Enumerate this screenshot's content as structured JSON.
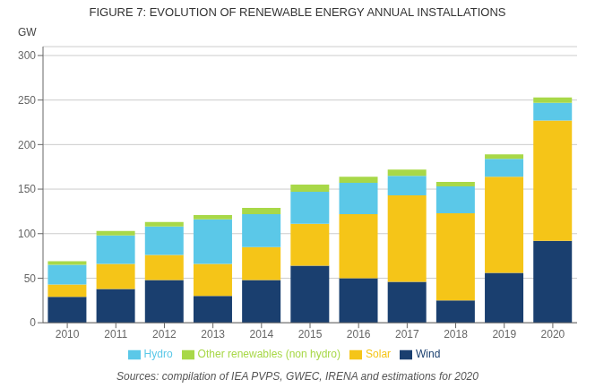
{
  "chart_data": {
    "type": "bar",
    "title": "FIGURE 7: EVOLUTION OF RENEWABLE ENERGY ANNUAL INSTALLATIONS",
    "ylabel": "GW",
    "annotation": "Sources: compilation of IEA PVPS, GWEC, IRENA and estimations for 2020",
    "categories": [
      "2010",
      "2011",
      "2012",
      "2013",
      "2014",
      "2015",
      "2016",
      "2017",
      "2018",
      "2019",
      "2020"
    ],
    "series": [
      {
        "name": "Wind",
        "color": "#1a3f6f",
        "values": [
          29,
          38,
          48,
          30,
          48,
          64,
          50,
          46,
          25,
          56,
          92
        ]
      },
      {
        "name": "Solar",
        "color": "#f5c518",
        "values": [
          14,
          28,
          28,
          36,
          37,
          47,
          72,
          97,
          98,
          108,
          135
        ]
      },
      {
        "name": "Hydro",
        "color": "#5bc8e8",
        "values": [
          22,
          32,
          32,
          50,
          37,
          36,
          35,
          22,
          30,
          20,
          20
        ]
      },
      {
        "name": "Other renewables (non hydro)",
        "color": "#a8d848",
        "values": [
          4,
          5,
          5,
          5,
          7,
          8,
          7,
          7,
          5,
          5,
          6
        ]
      }
    ],
    "ylim": [
      0,
      310
    ],
    "yticks": [
      0,
      50,
      100,
      150,
      200,
      250,
      300
    ],
    "stacked": true,
    "grid": true,
    "legend": "bottom"
  }
}
